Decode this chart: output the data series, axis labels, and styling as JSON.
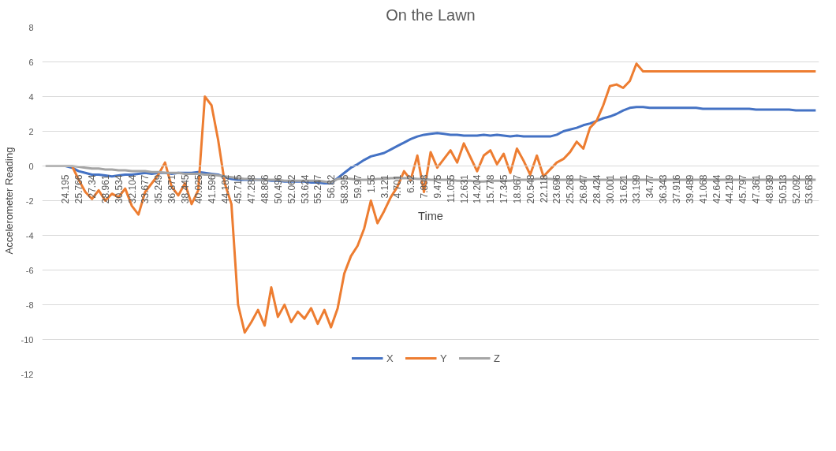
{
  "chart_data": {
    "type": "line",
    "title": "On the Lawn",
    "xlabel": "Time",
    "ylabel": "Accelerometer Reading",
    "categories": [
      null,
      null,
      null,
      "24.195",
      null,
      "25.766",
      null,
      "27.34",
      null,
      "28.961",
      null,
      "30.534",
      null,
      "32.104",
      null,
      "33.677",
      null,
      "35.249",
      null,
      "36.871",
      null,
      "38.445",
      null,
      "40.025",
      null,
      "41.596",
      null,
      "44.182",
      null,
      "45.715",
      null,
      "47.288",
      null,
      "48.866",
      null,
      "50.496",
      null,
      "52.062",
      null,
      "53.624",
      null,
      "55.247",
      null,
      "56.82",
      null,
      "58.395",
      null,
      "59.97",
      null,
      "1.55",
      null,
      "3.121",
      null,
      "4.701",
      null,
      "6.32",
      null,
      "7.898",
      null,
      "9.475",
      null,
      "11.055",
      null,
      "12.631",
      null,
      "14.204",
      null,
      "15.778",
      null,
      "17.345",
      null,
      "18.967",
      null,
      "20.548",
      null,
      "22.118",
      null,
      "23.696",
      null,
      "25.268",
      null,
      "26.847",
      null,
      "28.424",
      null,
      "30.001",
      null,
      "31.621",
      null,
      "33.199",
      null,
      "34.77",
      null,
      "36.343",
      null,
      "37.916",
      null,
      "39.489",
      null,
      "41.068",
      null,
      "42.644",
      null,
      "44.219",
      null,
      "45.797",
      null,
      "47.361",
      null,
      "48.939",
      null,
      "50.513",
      null,
      "52.092",
      null,
      "53.658",
      null
    ],
    "series": [
      {
        "name": "X",
        "color": "#4472c4",
        "values": [
          null,
          null,
          0,
          0,
          -0.1,
          -0.3,
          -0.4,
          -0.5,
          -0.5,
          -0.55,
          -0.6,
          -0.55,
          -0.5,
          -0.5,
          -0.45,
          -0.4,
          -0.45,
          -0.4,
          -0.4,
          -0.45,
          -0.4,
          -0.4,
          -0.4,
          -0.35,
          -0.4,
          -0.45,
          -0.5,
          -0.65,
          -0.75,
          -0.8,
          -0.8,
          -0.8,
          -0.8,
          -0.8,
          -0.85,
          -0.85,
          -0.9,
          -0.9,
          -0.9,
          -0.9,
          -0.95,
          -0.95,
          -1.0,
          -1.0,
          -0.7,
          -0.4,
          -0.1,
          0.1,
          0.35,
          0.55,
          0.65,
          0.75,
          0.95,
          1.15,
          1.35,
          1.55,
          1.7,
          1.8,
          1.85,
          1.9,
          1.85,
          1.8,
          1.8,
          1.75,
          1.75,
          1.75,
          1.8,
          1.75,
          1.8,
          1.75,
          1.7,
          1.75,
          1.7,
          1.7,
          1.7,
          1.7,
          1.7,
          1.8,
          2.0,
          2.1,
          2.2,
          2.35,
          2.45,
          2.6,
          2.75,
          2.85,
          3.0,
          3.2,
          3.35,
          3.4,
          3.4,
          3.35,
          3.35,
          3.35,
          3.35,
          3.35,
          3.35,
          3.35,
          3.35,
          3.3,
          3.3,
          3.3,
          3.3,
          3.3,
          3.3,
          3.3,
          3.3,
          3.25,
          3.25,
          3.25,
          3.25,
          3.25,
          3.25,
          3.2,
          3.2,
          3.2,
          3.2
        ]
      },
      {
        "name": "Y",
        "color": "#ed7d31",
        "values": [
          null,
          null,
          null,
          0,
          0,
          -0.8,
          -1.5,
          -1.9,
          -1.4,
          -2.0,
          -1.6,
          -1.8,
          -1.3,
          -2.3,
          -2.8,
          -1.5,
          -1.0,
          -0.5,
          0.2,
          -1.2,
          -1.7,
          -1.0,
          -2.2,
          -1.4,
          4.0,
          3.5,
          1.5,
          -1.0,
          -2.2,
          -8.0,
          -9.6,
          -9.0,
          -8.3,
          -9.2,
          -7.0,
          -8.7,
          -8.0,
          -9.0,
          -8.4,
          -8.8,
          -8.2,
          -9.1,
          -8.3,
          -9.3,
          -8.2,
          -6.2,
          -5.2,
          -4.6,
          -3.6,
          -2.0,
          -3.3,
          -2.6,
          -1.8,
          -1.2,
          -0.3,
          -0.8,
          0.6,
          -1.5,
          0.8,
          -0.1,
          0.4,
          0.9,
          0.2,
          1.3,
          0.5,
          -0.3,
          0.6,
          0.9,
          0.1,
          0.7,
          -0.4,
          1.0,
          0.3,
          -0.5,
          0.6,
          -0.6,
          -0.2,
          0.2,
          0.4,
          0.8,
          1.4,
          1.0,
          2.2,
          2.6,
          3.5,
          4.6,
          4.7,
          4.5,
          4.9,
          5.9,
          5.45,
          5.45,
          5.45,
          5.45,
          5.45,
          5.45,
          5.45,
          5.45,
          5.45,
          5.45,
          5.45,
          5.45,
          5.45,
          5.45,
          5.45,
          5.45,
          5.45,
          5.45,
          5.45,
          5.45,
          5.45,
          5.45,
          5.45,
          5.45,
          5.45,
          5.45,
          5.45
        ]
      },
      {
        "name": "Z",
        "color": "#a5a5a5",
        "values": [
          0,
          0,
          0,
          0,
          0,
          -0.05,
          -0.1,
          -0.15,
          -0.15,
          -0.2,
          -0.2,
          -0.25,
          -0.25,
          -0.3,
          -0.3,
          -0.3,
          -0.35,
          -0.35,
          -0.4,
          -0.4,
          -0.4,
          -0.45,
          -0.45,
          -0.45,
          -0.5,
          -0.5,
          -0.55,
          -0.6,
          -0.65,
          -0.7,
          -0.75,
          -0.75,
          -0.8,
          -0.8,
          -0.8,
          -0.8,
          -0.85,
          -0.85,
          -0.85,
          -0.85,
          -0.85,
          -0.85,
          -0.9,
          -0.95,
          -0.75,
          -0.7,
          -0.75,
          -0.8,
          -0.8,
          -0.8,
          -0.75,
          -0.75,
          -0.7,
          -0.7,
          -0.7,
          -0.7,
          -0.75,
          -0.75,
          -0.8,
          -0.8,
          -0.8,
          -0.8,
          -0.85,
          -0.85,
          -0.85,
          -0.9,
          -0.9,
          -0.85,
          -0.85,
          -0.85,
          -0.85,
          -0.8,
          -0.8,
          -0.8,
          -0.75,
          -0.75,
          -0.75,
          -0.8,
          -0.8,
          -0.8,
          -0.8,
          -0.8,
          -0.8,
          -0.8,
          -0.8,
          -0.8,
          -0.8,
          -0.8,
          -0.8,
          -0.8,
          -0.8,
          -0.8,
          -0.8,
          -0.8,
          -0.8,
          -0.8,
          -0.8,
          -0.8,
          -0.8,
          -0.8,
          -0.8,
          -0.8,
          -0.8,
          -0.8,
          -0.8,
          -0.8,
          -0.8,
          -0.8,
          -0.8,
          -0.8,
          -0.8,
          -0.8,
          -0.8,
          -0.8,
          -0.8,
          -0.8,
          -0.8
        ]
      }
    ],
    "ylim": [
      -12,
      8
    ],
    "yticks": [
      -12,
      -10,
      -8,
      -6,
      -4,
      -2,
      0,
      2,
      4,
      6,
      8
    ],
    "grid": "y",
    "legend": "bottom",
    "marker": "none",
    "line_style": "solid"
  }
}
